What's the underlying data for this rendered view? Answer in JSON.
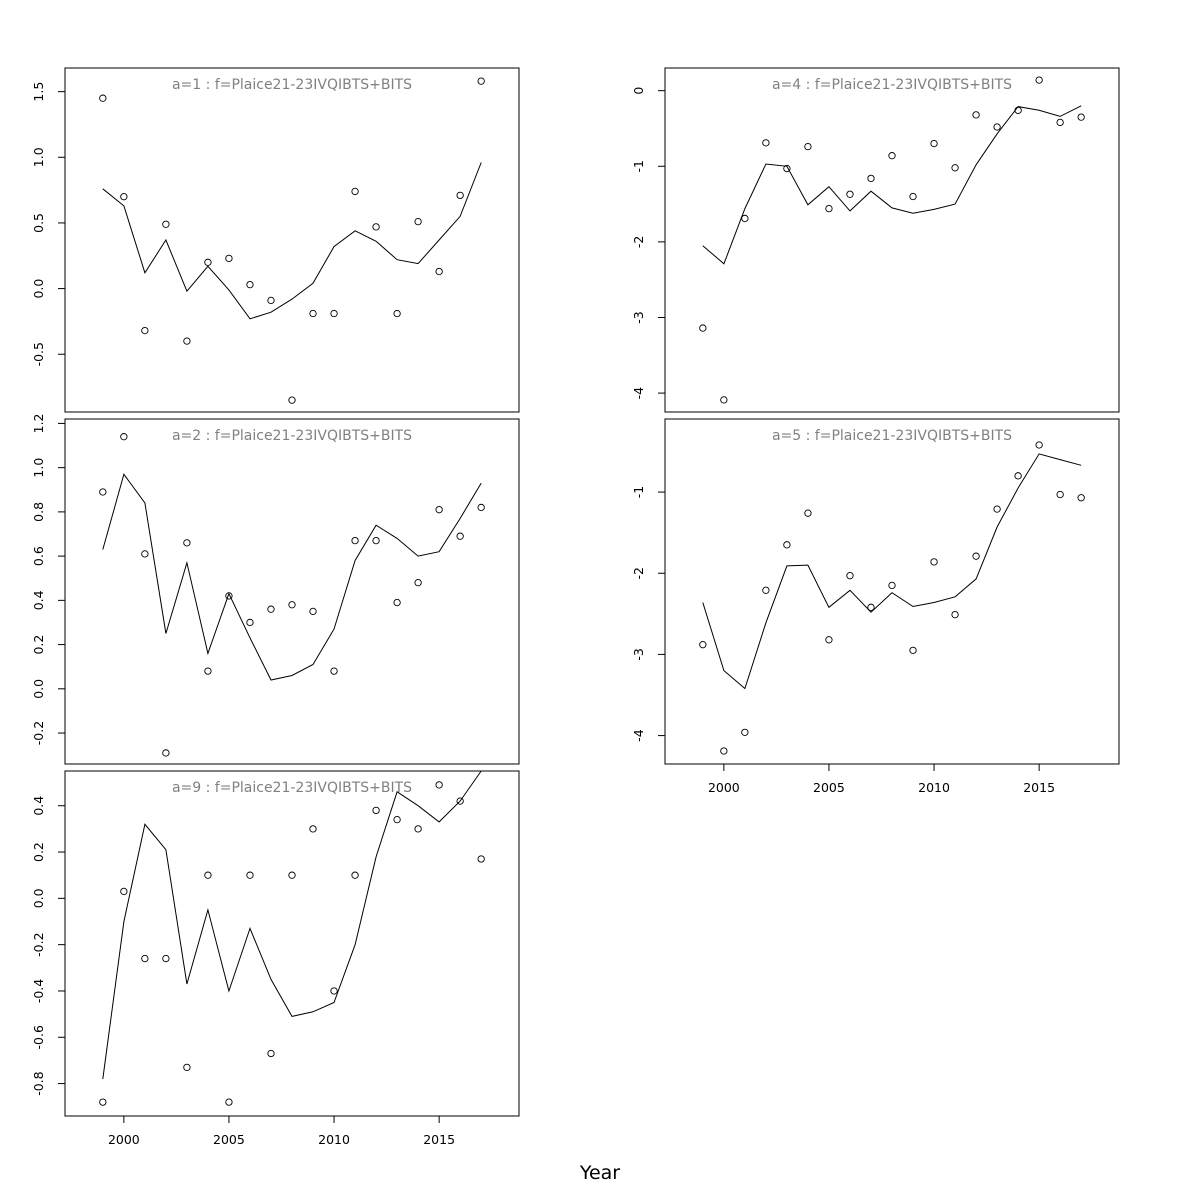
{
  "xlabel": "Year",
  "chart_data": [
    {
      "type": "line",
      "title": "a=1  :  f=Plaice21-23IVQIBTS+BITS",
      "xlim": [
        1997.2,
        2018.8
      ],
      "ylim": [
        -0.94,
        1.68
      ],
      "yticks": [
        "-0.5",
        "0.0",
        "0.5",
        "1.0",
        "1.5"
      ],
      "ytick_values": [
        -0.5,
        0.0,
        0.5,
        1.0,
        1.5
      ],
      "xticks": [],
      "x": [
        1999,
        2000,
        2001,
        2002,
        2003,
        2004,
        2005,
        2006,
        2007,
        2008,
        2009,
        2010,
        2011,
        2012,
        2013,
        2014,
        2015,
        2016,
        2017
      ],
      "series": [
        {
          "kind": "line",
          "values": [
            0.76,
            0.63,
            0.12,
            0.37,
            -0.02,
            0.17,
            -0.01,
            -0.23,
            -0.18,
            -0.08,
            0.04,
            0.32,
            0.44,
            0.36,
            0.22,
            0.19,
            0.37,
            0.55,
            0.96
          ]
        },
        {
          "kind": "points",
          "values": [
            1.45,
            0.7,
            -0.32,
            0.49,
            -0.4,
            0.2,
            0.23,
            0.03,
            -0.09,
            -0.85,
            -0.19,
            -0.19,
            0.74,
            0.47,
            -0.19,
            0.51,
            0.13,
            0.71,
            1.58
          ]
        }
      ]
    },
    {
      "type": "line",
      "title": "a=2  :  f=Plaice21-23IVQIBTS+BITS",
      "xlim": [
        1997.2,
        2018.8
      ],
      "ylim": [
        -0.34,
        1.22
      ],
      "yticks": [
        "-0.2",
        "0.0",
        "0.2",
        "0.4",
        "0.6",
        "0.8",
        "1.0",
        "1.2"
      ],
      "ytick_values": [
        -0.2,
        0.0,
        0.2,
        0.4,
        0.6,
        0.8,
        1.0,
        1.2
      ],
      "xticks": [],
      "x": [
        1999,
        2000,
        2001,
        2002,
        2003,
        2004,
        2005,
        2006,
        2007,
        2008,
        2009,
        2010,
        2011,
        2012,
        2013,
        2014,
        2015,
        2016,
        2017
      ],
      "series": [
        {
          "kind": "line",
          "values": [
            0.63,
            0.97,
            0.84,
            0.25,
            0.57,
            0.16,
            0.43,
            0.23,
            0.04,
            0.06,
            0.11,
            0.27,
            0.58,
            0.74,
            0.68,
            0.6,
            0.62,
            0.77,
            0.93
          ]
        },
        {
          "kind": "points",
          "values": [
            0.89,
            1.14,
            0.61,
            -0.29,
            0.66,
            0.08,
            0.42,
            0.3,
            0.36,
            0.38,
            0.35,
            0.08,
            0.67,
            0.67,
            0.39,
            0.48,
            0.81,
            0.69,
            0.82
          ]
        }
      ]
    },
    {
      "type": "line",
      "title": "a=9  :  f=Plaice21-23IVQIBTS+BITS",
      "xlim": [
        1997.2,
        2018.8
      ],
      "ylim": [
        -0.94,
        0.55
      ],
      "yticks": [
        "-0.8",
        "-0.6",
        "-0.4",
        "-0.2",
        "0.0",
        "0.2",
        "0.4"
      ],
      "ytick_values": [
        -0.8,
        -0.6,
        -0.4,
        -0.2,
        0.0,
        0.2,
        0.4
      ],
      "xticks": [
        "2000",
        "2005",
        "2010",
        "2015"
      ],
      "xtick_values": [
        2000,
        2005,
        2010,
        2015
      ],
      "x": [
        1999,
        2000,
        2001,
        2002,
        2003,
        2004,
        2005,
        2006,
        2007,
        2008,
        2009,
        2010,
        2011,
        2012,
        2013,
        2014,
        2015,
        2016,
        2017
      ],
      "series": [
        {
          "kind": "line",
          "values": [
            -0.78,
            -0.1,
            0.32,
            0.21,
            -0.37,
            -0.05,
            -0.4,
            -0.13,
            -0.35,
            -0.51,
            -0.49,
            -0.45,
            -0.2,
            0.18,
            0.46,
            0.4,
            0.33,
            0.42,
            0.55
          ]
        },
        {
          "kind": "points",
          "values": [
            -0.88,
            0.03,
            -0.26,
            -0.26,
            -0.73,
            0.1,
            -0.88,
            0.1,
            -0.67,
            0.1,
            0.3,
            -0.4,
            0.1,
            0.38,
            0.34,
            0.3,
            0.49,
            0.42,
            0.17
          ]
        }
      ]
    },
    {
      "type": "line",
      "title": "a=4  :  f=Plaice21-23IVQIBTS+BITS",
      "xlim": [
        1997.2,
        2018.8
      ],
      "ylim": [
        -4.25,
        0.3
      ],
      "yticks": [
        "-4",
        "-3",
        "-2",
        "-1",
        "0"
      ],
      "ytick_values": [
        -4,
        -3,
        -2,
        -1,
        0
      ],
      "xticks": [],
      "x": [
        1999,
        2000,
        2001,
        2002,
        2003,
        2004,
        2005,
        2006,
        2007,
        2008,
        2009,
        2010,
        2011,
        2012,
        2013,
        2014,
        2015,
        2016,
        2017
      ],
      "series": [
        {
          "kind": "line",
          "values": [
            -2.05,
            -2.29,
            -1.56,
            -0.97,
            -1.0,
            -1.51,
            -1.27,
            -1.59,
            -1.33,
            -1.55,
            -1.62,
            -1.57,
            -1.5,
            -0.98,
            -0.57,
            -0.21,
            -0.26,
            -0.34,
            -0.2
          ]
        },
        {
          "kind": "points",
          "values": [
            -3.14,
            -4.09,
            -1.69,
            -0.69,
            -1.03,
            -0.74,
            -1.56,
            -1.37,
            -1.16,
            -0.86,
            -1.4,
            -0.7,
            -1.02,
            -0.32,
            -0.48,
            -0.26,
            0.14,
            -0.42,
            -0.35
          ]
        }
      ]
    },
    {
      "type": "line",
      "title": "a=5  :  f=Plaice21-23IVQIBTS+BITS",
      "xlim": [
        1997.2,
        2018.8
      ],
      "ylim": [
        -4.35,
        -0.1
      ],
      "yticks": [
        "-4",
        "-3",
        "-2",
        "-1"
      ],
      "ytick_values": [
        -4,
        -3,
        -2,
        -1
      ],
      "xticks": [
        "2000",
        "2005",
        "2010",
        "2015"
      ],
      "xtick_values": [
        2000,
        2005,
        2010,
        2015
      ],
      "x": [
        1999,
        2000,
        2001,
        2002,
        2003,
        2004,
        2005,
        2006,
        2007,
        2008,
        2009,
        2010,
        2011,
        2012,
        2013,
        2014,
        2015,
        2016,
        2017
      ],
      "series": [
        {
          "kind": "line",
          "values": [
            -2.36,
            -3.2,
            -3.42,
            -2.61,
            -1.91,
            -1.9,
            -2.42,
            -2.21,
            -2.48,
            -2.24,
            -2.41,
            -2.36,
            -2.29,
            -2.07,
            -1.43,
            -0.95,
            -0.53,
            -0.6,
            -0.67
          ]
        },
        {
          "kind": "points",
          "values": [
            -2.88,
            -4.19,
            -3.96,
            -2.21,
            -1.65,
            -1.26,
            -2.82,
            -2.03,
            -2.42,
            -2.15,
            -2.95,
            -1.86,
            -2.51,
            -1.79,
            -1.21,
            -0.8,
            -0.42,
            -1.03,
            -1.07
          ]
        }
      ]
    }
  ]
}
